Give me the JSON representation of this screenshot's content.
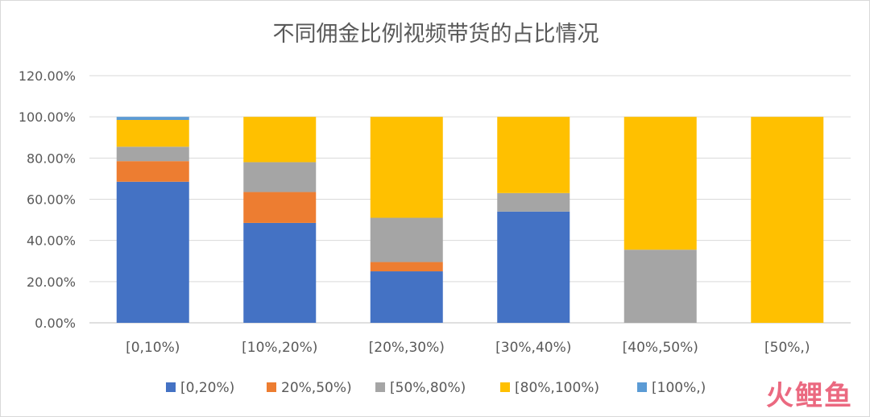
{
  "chart_data": {
    "type": "bar",
    "stacked": true,
    "title": "不同佣金比例视频带货的占比情况",
    "xlabel": "",
    "ylabel": "",
    "ylim": [
      0,
      120
    ],
    "yticks": [
      "0.00%",
      "20.00%",
      "40.00%",
      "60.00%",
      "80.00%",
      "100.00%",
      "120.00%"
    ],
    "grid": true,
    "legend_position": "bottom",
    "categories": [
      "[0,10%)",
      "[10%,20%)",
      "[20%,30%)",
      "[30%,40%)",
      "[40%,50%)",
      "[50%,)"
    ],
    "series": [
      {
        "name": "[0,20%)",
        "color": "#4472C4",
        "values": [
          68.5,
          48.5,
          25,
          54,
          0,
          0
        ]
      },
      {
        "name": "20%,50%)",
        "color": "#ED7D31",
        "values": [
          10,
          15,
          4.5,
          0,
          0,
          0
        ]
      },
      {
        "name": "[50%,80%)",
        "color": "#A5A5A5",
        "values": [
          7,
          14.5,
          21.5,
          9,
          35.5,
          0
        ]
      },
      {
        "name": "[80%,100%)",
        "color": "#FFC000",
        "values": [
          13,
          22,
          49,
          37,
          64.5,
          100
        ]
      },
      {
        "name": "[100%,)",
        "color": "#5B9BD5",
        "values": [
          1.5,
          0,
          0,
          0,
          0,
          0
        ]
      }
    ]
  },
  "watermark": "火鲤鱼"
}
